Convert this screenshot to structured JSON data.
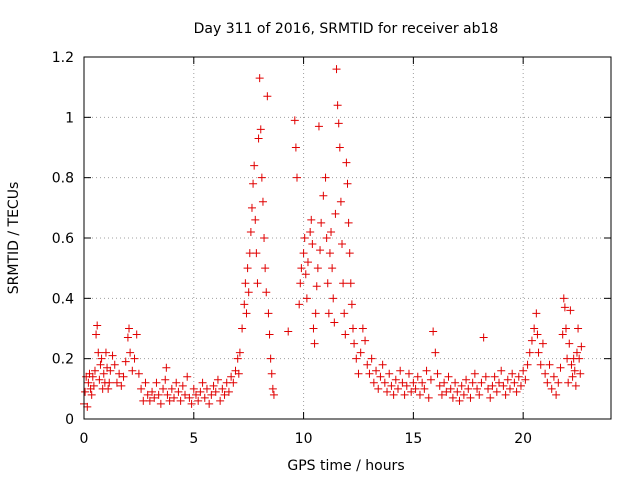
{
  "chart_data": {
    "type": "scatter",
    "title": "Day 311 of 2016, SRMTID for receiver ab18",
    "xlabel": "GPS time / hours",
    "ylabel": "SRMTID / TECUs",
    "xlim": [
      0,
      24
    ],
    "ylim": [
      0,
      1.2
    ],
    "xticks": [
      0,
      5,
      10,
      15,
      20
    ],
    "yticks": [
      0,
      0.2,
      0.4,
      0.6,
      0.8,
      1,
      1.2
    ],
    "ytick_labels": [
      "0",
      "0.2",
      "0.4",
      "0.6",
      "0.8",
      "1",
      "1.2"
    ],
    "grid": true,
    "marker": "+",
    "series": [
      {
        "name": "SRMTID",
        "color": "#e00000",
        "points": [
          [
            0.0,
            0.05
          ],
          [
            0.05,
            0.09
          ],
          [
            0.1,
            0.14
          ],
          [
            0.15,
            0.04
          ],
          [
            0.2,
            0.12
          ],
          [
            0.25,
            0.15
          ],
          [
            0.3,
            0.1
          ],
          [
            0.35,
            0.08
          ],
          [
            0.4,
            0.14
          ],
          [
            0.45,
            0.11
          ],
          [
            0.5,
            0.16
          ],
          [
            0.55,
            0.28
          ],
          [
            0.6,
            0.31
          ],
          [
            0.65,
            0.22
          ],
          [
            0.7,
            0.13
          ],
          [
            0.75,
            0.18
          ],
          [
            0.8,
            0.2
          ],
          [
            0.85,
            0.1
          ],
          [
            0.9,
            0.15
          ],
          [
            0.95,
            0.12
          ],
          [
            1.0,
            0.22
          ],
          [
            1.05,
            0.17
          ],
          [
            1.1,
            0.1
          ],
          [
            1.15,
            0.12
          ],
          [
            1.2,
            0.16
          ],
          [
            1.3,
            0.21
          ],
          [
            1.4,
            0.18
          ],
          [
            1.5,
            0.12
          ],
          [
            1.6,
            0.15
          ],
          [
            1.7,
            0.11
          ],
          [
            1.8,
            0.14
          ],
          [
            1.9,
            0.19
          ],
          [
            2.0,
            0.27
          ],
          [
            2.05,
            0.3
          ],
          [
            2.1,
            0.22
          ],
          [
            2.2,
            0.16
          ],
          [
            2.3,
            0.2
          ],
          [
            2.4,
            0.28
          ],
          [
            2.5,
            0.15
          ],
          [
            2.6,
            0.1
          ],
          [
            2.7,
            0.06
          ],
          [
            2.8,
            0.12
          ],
          [
            2.9,
            0.08
          ],
          [
            3.0,
            0.06
          ],
          [
            3.1,
            0.09
          ],
          [
            3.2,
            0.07
          ],
          [
            3.3,
            0.12
          ],
          [
            3.4,
            0.08
          ],
          [
            3.5,
            0.05
          ],
          [
            3.6,
            0.1
          ],
          [
            3.7,
            0.13
          ],
          [
            3.75,
            0.17
          ],
          [
            3.8,
            0.08
          ],
          [
            3.9,
            0.06
          ],
          [
            4.0,
            0.1
          ],
          [
            4.1,
            0.07
          ],
          [
            4.2,
            0.12
          ],
          [
            4.3,
            0.09
          ],
          [
            4.4,
            0.06
          ],
          [
            4.5,
            0.11
          ],
          [
            4.6,
            0.08
          ],
          [
            4.7,
            0.14
          ],
          [
            4.8,
            0.07
          ],
          [
            4.9,
            0.05
          ],
          [
            5.0,
            0.1
          ],
          [
            5.1,
            0.08
          ],
          [
            5.2,
            0.06
          ],
          [
            5.3,
            0.09
          ],
          [
            5.4,
            0.12
          ],
          [
            5.5,
            0.07
          ],
          [
            5.6,
            0.1
          ],
          [
            5.7,
            0.05
          ],
          [
            5.8,
            0.08
          ],
          [
            5.9,
            0.11
          ],
          [
            6.0,
            0.09
          ],
          [
            6.1,
            0.13
          ],
          [
            6.2,
            0.06
          ],
          [
            6.3,
            0.1
          ],
          [
            6.4,
            0.08
          ],
          [
            6.5,
            0.12
          ],
          [
            6.6,
            0.09
          ],
          [
            6.7,
            0.14
          ],
          [
            6.8,
            0.12
          ],
          [
            6.9,
            0.16
          ],
          [
            7.0,
            0.2
          ],
          [
            7.05,
            0.15
          ],
          [
            7.1,
            0.22
          ],
          [
            7.2,
            0.3
          ],
          [
            7.3,
            0.38
          ],
          [
            7.35,
            0.45
          ],
          [
            7.4,
            0.35
          ],
          [
            7.45,
            0.5
          ],
          [
            7.5,
            0.42
          ],
          [
            7.55,
            0.55
          ],
          [
            7.6,
            0.62
          ],
          [
            7.65,
            0.7
          ],
          [
            7.7,
            0.78
          ],
          [
            7.75,
            0.84
          ],
          [
            7.8,
            0.66
          ],
          [
            7.85,
            0.55
          ],
          [
            7.9,
            0.45
          ],
          [
            7.95,
            0.93
          ],
          [
            8.0,
            1.13
          ],
          [
            8.05,
            0.96
          ],
          [
            8.1,
            0.8
          ],
          [
            8.15,
            0.72
          ],
          [
            8.2,
            0.6
          ],
          [
            8.25,
            0.5
          ],
          [
            8.3,
            0.42
          ],
          [
            8.35,
            1.07
          ],
          [
            8.4,
            0.35
          ],
          [
            8.45,
            0.28
          ],
          [
            8.5,
            0.2
          ],
          [
            8.55,
            0.15
          ],
          [
            8.6,
            0.1
          ],
          [
            8.65,
            0.08
          ],
          [
            9.3,
            0.29
          ],
          [
            9.6,
            0.99
          ],
          [
            9.65,
            0.9
          ],
          [
            9.7,
            0.8
          ],
          [
            9.8,
            0.38
          ],
          [
            9.85,
            0.45
          ],
          [
            9.9,
            0.5
          ],
          [
            10.0,
            0.55
          ],
          [
            10.05,
            0.6
          ],
          [
            10.1,
            0.48
          ],
          [
            10.15,
            0.4
          ],
          [
            10.2,
            0.52
          ],
          [
            10.3,
            0.62
          ],
          [
            10.35,
            0.66
          ],
          [
            10.4,
            0.58
          ],
          [
            10.45,
            0.3
          ],
          [
            10.5,
            0.25
          ],
          [
            10.55,
            0.35
          ],
          [
            10.6,
            0.44
          ],
          [
            10.65,
            0.5
          ],
          [
            10.7,
            0.97
          ],
          [
            10.75,
            0.56
          ],
          [
            10.8,
            0.65
          ],
          [
            10.9,
            0.74
          ],
          [
            11.0,
            0.8
          ],
          [
            11.05,
            0.6
          ],
          [
            11.1,
            0.45
          ],
          [
            11.15,
            0.35
          ],
          [
            11.2,
            0.55
          ],
          [
            11.25,
            0.62
          ],
          [
            11.3,
            0.5
          ],
          [
            11.35,
            0.4
          ],
          [
            11.4,
            0.32
          ],
          [
            11.45,
            0.68
          ],
          [
            11.5,
            1.16
          ],
          [
            11.55,
            1.04
          ],
          [
            11.6,
            0.98
          ],
          [
            11.65,
            0.9
          ],
          [
            11.7,
            0.72
          ],
          [
            11.75,
            0.58
          ],
          [
            11.8,
            0.45
          ],
          [
            11.85,
            0.35
          ],
          [
            11.9,
            0.28
          ],
          [
            11.95,
            0.85
          ],
          [
            12.0,
            0.78
          ],
          [
            12.05,
            0.65
          ],
          [
            12.1,
            0.55
          ],
          [
            12.15,
            0.45
          ],
          [
            12.2,
            0.38
          ],
          [
            12.25,
            0.3
          ],
          [
            12.3,
            0.25
          ],
          [
            12.4,
            0.2
          ],
          [
            12.5,
            0.15
          ],
          [
            12.6,
            0.22
          ],
          [
            12.7,
            0.3
          ],
          [
            12.8,
            0.26
          ],
          [
            12.9,
            0.18
          ],
          [
            13.0,
            0.15
          ],
          [
            13.1,
            0.2
          ],
          [
            13.2,
            0.12
          ],
          [
            13.3,
            0.16
          ],
          [
            13.4,
            0.1
          ],
          [
            13.5,
            0.14
          ],
          [
            13.6,
            0.18
          ],
          [
            13.7,
            0.12
          ],
          [
            13.8,
            0.09
          ],
          [
            13.9,
            0.15
          ],
          [
            14.0,
            0.11
          ],
          [
            14.1,
            0.08
          ],
          [
            14.2,
            0.13
          ],
          [
            14.3,
            0.1
          ],
          [
            14.4,
            0.16
          ],
          [
            14.5,
            0.12
          ],
          [
            14.6,
            0.08
          ],
          [
            14.7,
            0.11
          ],
          [
            14.8,
            0.15
          ],
          [
            14.9,
            0.09
          ],
          [
            15.0,
            0.12
          ],
          [
            15.1,
            0.1
          ],
          [
            15.2,
            0.14
          ],
          [
            15.3,
            0.08
          ],
          [
            15.4,
            0.12
          ],
          [
            15.5,
            0.1
          ],
          [
            15.6,
            0.16
          ],
          [
            15.7,
            0.07
          ],
          [
            15.8,
            0.13
          ],
          [
            15.9,
            0.29
          ],
          [
            16.0,
            0.22
          ],
          [
            16.1,
            0.15
          ],
          [
            16.2,
            0.11
          ],
          [
            16.3,
            0.08
          ],
          [
            16.4,
            0.12
          ],
          [
            16.5,
            0.09
          ],
          [
            16.6,
            0.14
          ],
          [
            16.7,
            0.1
          ],
          [
            16.8,
            0.07
          ],
          [
            16.9,
            0.12
          ],
          [
            17.0,
            0.09
          ],
          [
            17.1,
            0.06
          ],
          [
            17.2,
            0.11
          ],
          [
            17.3,
            0.08
          ],
          [
            17.4,
            0.13
          ],
          [
            17.5,
            0.1
          ],
          [
            17.6,
            0.07
          ],
          [
            17.7,
            0.12
          ],
          [
            17.8,
            0.15
          ],
          [
            17.9,
            0.1
          ],
          [
            18.0,
            0.08
          ],
          [
            18.1,
            0.12
          ],
          [
            18.2,
            0.27
          ],
          [
            18.3,
            0.14
          ],
          [
            18.4,
            0.1
          ],
          [
            18.5,
            0.07
          ],
          [
            18.6,
            0.11
          ],
          [
            18.7,
            0.14
          ],
          [
            18.8,
            0.09
          ],
          [
            18.9,
            0.12
          ],
          [
            19.0,
            0.16
          ],
          [
            19.1,
            0.11
          ],
          [
            19.2,
            0.08
          ],
          [
            19.3,
            0.13
          ],
          [
            19.4,
            0.1
          ],
          [
            19.5,
            0.15
          ],
          [
            19.6,
            0.12
          ],
          [
            19.7,
            0.09
          ],
          [
            19.8,
            0.14
          ],
          [
            19.9,
            0.11
          ],
          [
            20.0,
            0.16
          ],
          [
            20.1,
            0.13
          ],
          [
            20.2,
            0.18
          ],
          [
            20.3,
            0.22
          ],
          [
            20.4,
            0.26
          ],
          [
            20.5,
            0.3
          ],
          [
            20.6,
            0.35
          ],
          [
            20.65,
            0.28
          ],
          [
            20.7,
            0.22
          ],
          [
            20.8,
            0.18
          ],
          [
            20.9,
            0.25
          ],
          [
            21.0,
            0.15
          ],
          [
            21.1,
            0.12
          ],
          [
            21.2,
            0.18
          ],
          [
            21.3,
            0.1
          ],
          [
            21.4,
            0.14
          ],
          [
            21.5,
            0.08
          ],
          [
            21.6,
            0.12
          ],
          [
            21.7,
            0.17
          ],
          [
            21.8,
            0.28
          ],
          [
            21.85,
            0.4
          ],
          [
            21.9,
            0.37
          ],
          [
            21.95,
            0.3
          ],
          [
            22.0,
            0.2
          ],
          [
            22.05,
            0.12
          ],
          [
            22.1,
            0.25
          ],
          [
            22.15,
            0.36
          ],
          [
            22.2,
            0.18
          ],
          [
            22.25,
            0.14
          ],
          [
            22.3,
            0.2
          ],
          [
            22.35,
            0.16
          ],
          [
            22.4,
            0.11
          ],
          [
            22.45,
            0.22
          ],
          [
            22.5,
            0.3
          ],
          [
            22.55,
            0.2
          ],
          [
            22.6,
            0.15
          ],
          [
            22.65,
            0.24
          ]
        ]
      }
    ]
  }
}
